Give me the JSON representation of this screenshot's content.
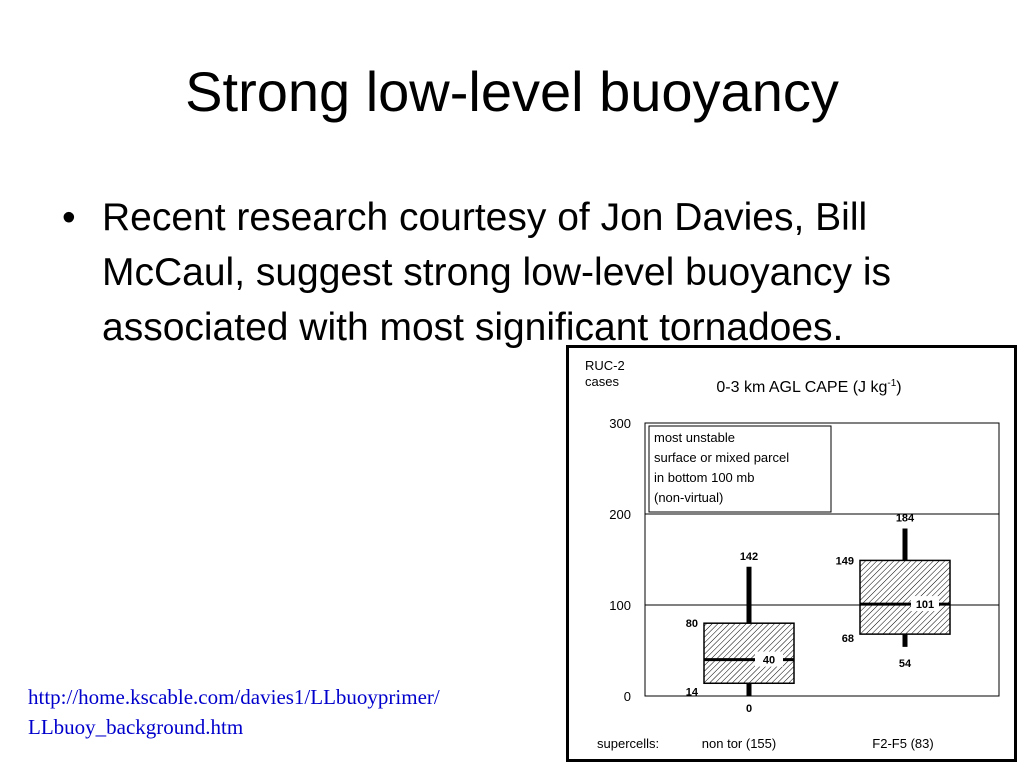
{
  "slide": {
    "title": "Strong low-level buoyancy",
    "bullet_symbol": "•",
    "bullet_text": "Recent research courtesy of Jon Davies, Bill McCaul, suggest strong low-level buoyancy is associated with most significant tornadoes.",
    "link_line1": "http://home.kscable.com/davies1/LLbuoyprimer/",
    "link_line2": "LLbuoy_background.htm",
    "link_color": "#0000cc"
  },
  "chart_data": {
    "type": "boxplot",
    "title_main": "0-3 km AGL CAPE (J kg",
    "title_sup": "-1",
    "title_end": ")",
    "ylabel_line1": "RUC-2",
    "ylabel_line2": "cases",
    "ylim": [
      0,
      300
    ],
    "yticks": [
      0,
      100,
      200,
      300
    ],
    "grid": true,
    "annotation": [
      "most unstable",
      "surface or mixed parcel",
      "in bottom 100 mb",
      "(non-virtual)"
    ],
    "x_prefix": "supercells:",
    "categories": [
      "non tor (155)",
      "F2-F5 (83)"
    ],
    "boxes": [
      {
        "min": 0,
        "q1": 14,
        "median": 40,
        "q3": 80,
        "max": 142
      },
      {
        "min": 54,
        "q1": 68,
        "median": 101,
        "q3": 149,
        "max": 184
      }
    ]
  }
}
